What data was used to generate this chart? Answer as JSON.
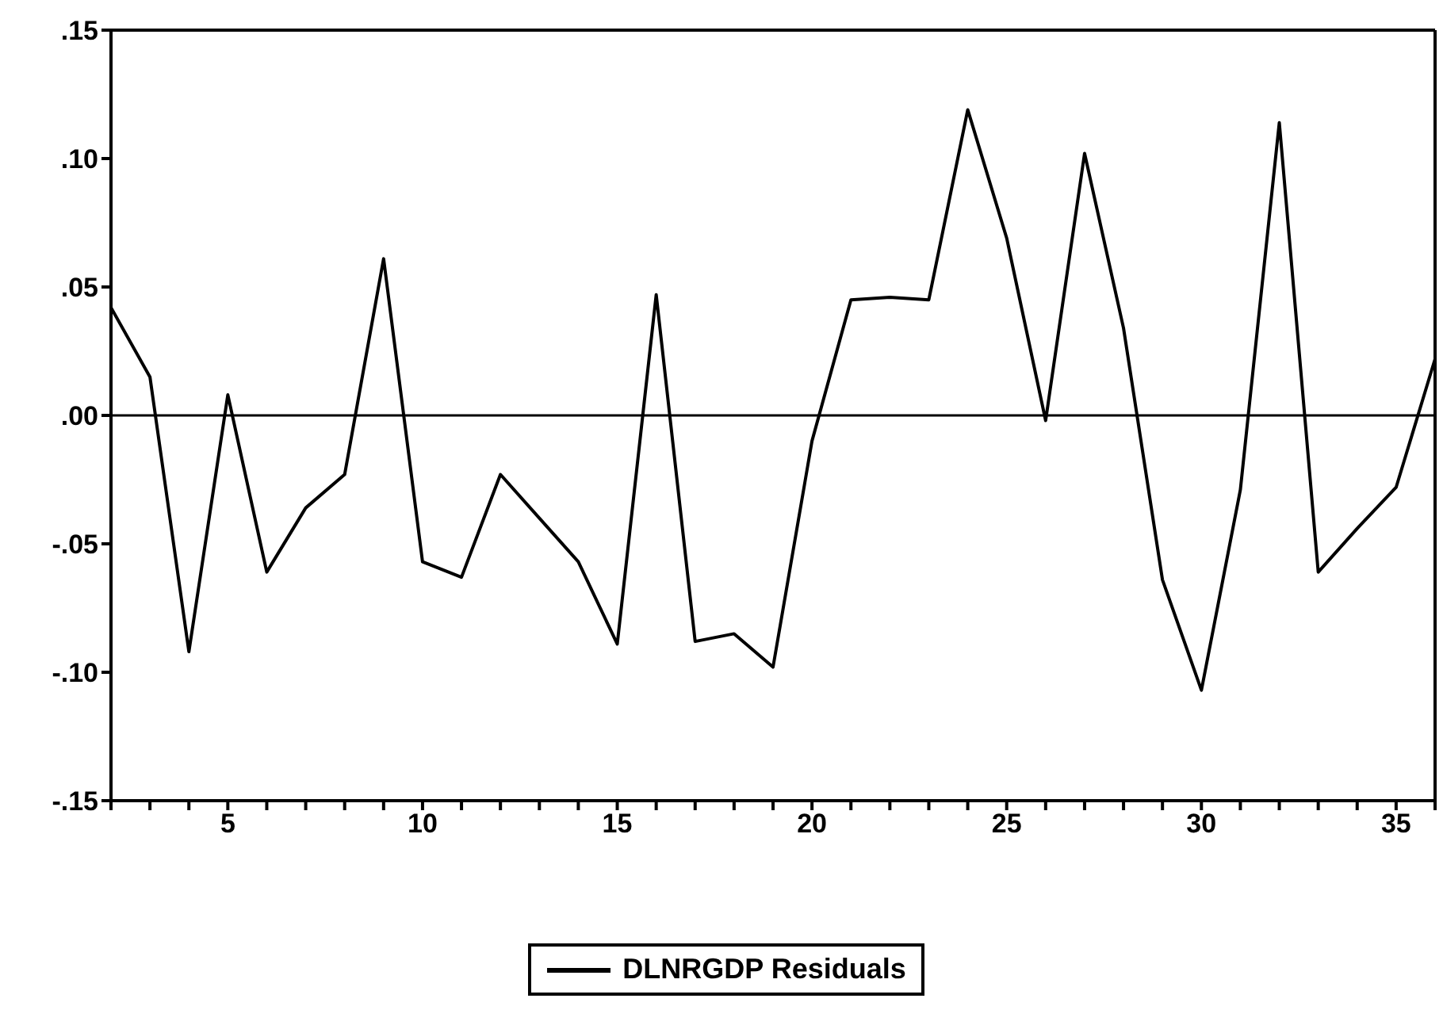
{
  "chart_data": {
    "type": "line",
    "xlim": [
      2,
      36
    ],
    "xticks": [
      {
        "value": 2,
        "label": null
      },
      {
        "value": 3,
        "label": null
      },
      {
        "value": 4,
        "label": null
      },
      5,
      {
        "value": 6,
        "label": null
      },
      {
        "value": 7,
        "label": null
      },
      {
        "value": 8,
        "label": null
      },
      {
        "value": 9,
        "label": null
      },
      10,
      {
        "value": 11,
        "label": null
      },
      {
        "value": 12,
        "label": null
      },
      {
        "value": 13,
        "label": null
      },
      {
        "value": 14,
        "label": null
      },
      15,
      {
        "value": 16,
        "label": null
      },
      {
        "value": 17,
        "label": null
      },
      {
        "value": 18,
        "label": null
      },
      {
        "value": 19,
        "label": null
      },
      20,
      {
        "value": 21,
        "label": null
      },
      {
        "value": 22,
        "label": null
      },
      {
        "value": 23,
        "label": null
      },
      {
        "value": 24,
        "label": null
      },
      25,
      {
        "value": 26,
        "label": null
      },
      {
        "value": 27,
        "label": null
      },
      {
        "value": 28,
        "label": null
      },
      {
        "value": 29,
        "label": null
      },
      30,
      {
        "value": 31,
        "label": null
      },
      {
        "value": 32,
        "label": null
      },
      {
        "value": 33,
        "label": null
      },
      {
        "value": 34,
        "label": null
      },
      35,
      {
        "value": 36,
        "label": null
      }
    ],
    "ylim": [
      -0.15,
      0.15
    ],
    "yticks": [
      {
        "value": -0.15,
        "label": "-.15"
      },
      {
        "value": -0.1,
        "label": "-.10"
      },
      {
        "value": -0.05,
        "label": "-.05"
      },
      {
        "value": 0,
        "label": ".00"
      },
      {
        "value": 0.05,
        "label": ".05"
      },
      {
        "value": 0.1,
        "label": ".10"
      },
      {
        "value": 0.15,
        "label": ".15"
      }
    ],
    "x": [
      2,
      3,
      4,
      5,
      6,
      7,
      8,
      9,
      10,
      11,
      12,
      13,
      14,
      15,
      16,
      17,
      18,
      19,
      20,
      21,
      22,
      23,
      24,
      25,
      26,
      27,
      28,
      29,
      30,
      31,
      32,
      33,
      34,
      35,
      36
    ],
    "series": [
      {
        "name": "DLNRGDP Residuals",
        "color": "#000000",
        "values": [
          0.042,
          0.015,
          -0.092,
          0.008,
          -0.061,
          -0.036,
          -0.023,
          0.061,
          -0.057,
          -0.063,
          -0.023,
          -0.04,
          -0.057,
          -0.089,
          0.047,
          -0.088,
          -0.085,
          -0.098,
          -0.01,
          0.045,
          0.046,
          0.045,
          0.119,
          0.069,
          -0.002,
          0.102,
          0.034,
          -0.064,
          -0.107,
          -0.029,
          0.114,
          -0.061,
          -0.044,
          -0.028,
          0.022
        ]
      }
    ],
    "ref_lines": [
      {
        "axis": "y",
        "value": 0,
        "color": "#000000"
      }
    ],
    "grid": false,
    "legend": "bottom",
    "marker": "none",
    "line_style": "solid"
  }
}
